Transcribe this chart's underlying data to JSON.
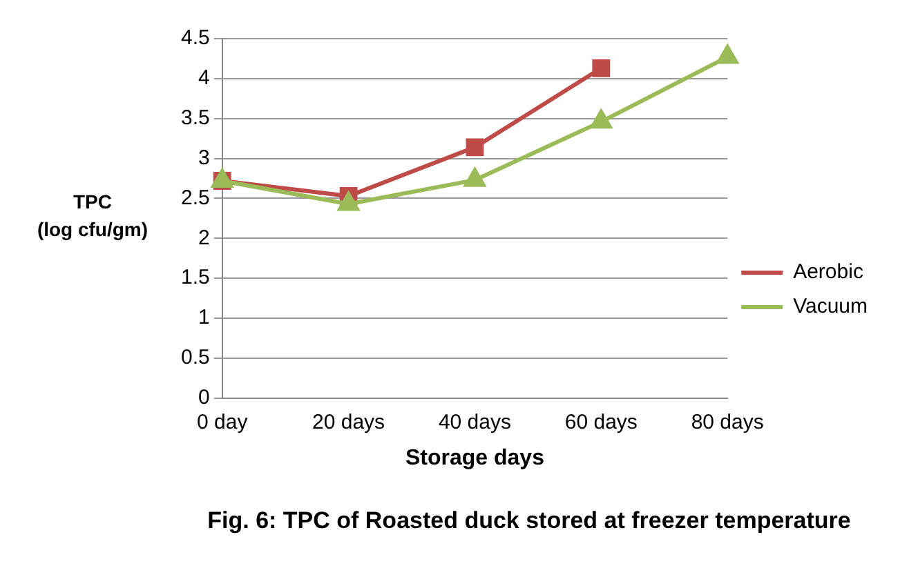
{
  "chart_data": {
    "type": "line",
    "title": "Fig. 6: TPC of Roasted duck stored at freezer temperature",
    "xlabel": "Storage days",
    "ylabel": "TPC\n(log cfu/gm)",
    "categories": [
      "0 day",
      "20 days",
      "40 days",
      "60 days",
      "80 days"
    ],
    "series": [
      {
        "name": "Aerobic",
        "color": "#be4b48",
        "marker": "square",
        "values": [
          2.72,
          2.53,
          3.14,
          4.13,
          null
        ]
      },
      {
        "name": "Vacuum",
        "color": "#9bbb59",
        "marker": "triangle",
        "values": [
          2.72,
          2.43,
          2.73,
          3.46,
          4.27
        ]
      }
    ],
    "ylim": [
      0,
      4.5
    ],
    "yticks": [
      0,
      0.5,
      1,
      1.5,
      2,
      2.5,
      3,
      3.5,
      4,
      4.5
    ],
    "grid": "y",
    "legend": "right",
    "line_style": "solid"
  }
}
